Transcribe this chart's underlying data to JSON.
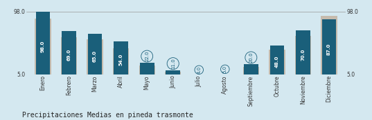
{
  "months": [
    "Enero",
    "Febrero",
    "Marzo",
    "Abril",
    "Mayo",
    "Junio",
    "Julio",
    "Agosto",
    "Septiembre",
    "Octubre",
    "Noviembre",
    "Diciembre"
  ],
  "blue_values": [
    98.0,
    69.0,
    65.0,
    54.0,
    22.0,
    11.0,
    4.0,
    5.0,
    20.0,
    48.0,
    70.0,
    87.0
  ],
  "gray_values": [
    88.0,
    60.0,
    57.0,
    44.0,
    18.0,
    9.0,
    3.5,
    4.0,
    16.0,
    42.0,
    62.0,
    92.0
  ],
  "blue_color": "#1a5f7a",
  "gray_color": "#c5bbad",
  "background_color": "#d4e8f0",
  "text_color": "#ffffff",
  "title": "Precipitaciones Medias en pineda trasmonte",
  "ylim_min": 5.0,
  "ylim_max": 98.0,
  "title_fontsize": 7.0,
  "value_fontsize": 5.0,
  "tick_fontsize": 5.5,
  "small_threshold": 25
}
